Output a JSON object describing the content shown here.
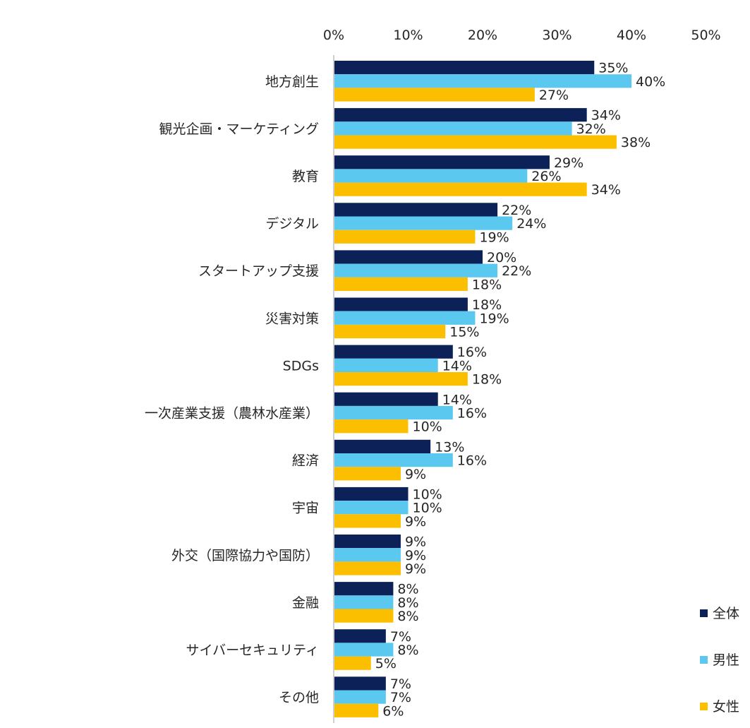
{
  "chart_data": {
    "type": "bar",
    "orientation": "horizontal",
    "xlim": [
      0,
      50
    ],
    "x_ticks": [
      "0%",
      "10%",
      "20%",
      "30%",
      "40%",
      "50%"
    ],
    "tick_values": [
      0,
      10,
      20,
      30,
      40,
      50
    ],
    "grid": false,
    "legend_position": "bottom-right",
    "categories": [
      "地方創生",
      "観光企画・マーケティング",
      "教育",
      "デジタル",
      "スタートアップ支援",
      "災害対策",
      "SDGs",
      "一次産業支援（農林水産業）",
      "経済",
      "宇宙",
      "外交（国際協力や国防）",
      "金融",
      "サイバーセキュリティ",
      "その他"
    ],
    "series": [
      {
        "name": "全体",
        "color": "#0d2159",
        "values": [
          35,
          34,
          29,
          22,
          20,
          18,
          16,
          14,
          13,
          10,
          9,
          8,
          7,
          7
        ],
        "labels": [
          "35%",
          "34%",
          "29%",
          "22%",
          "20%",
          "18%",
          "16%",
          "14%",
          "13%",
          "10%",
          "9%",
          "8%",
          "7%",
          "7%"
        ]
      },
      {
        "name": "男性",
        "color": "#5bc8f0",
        "values": [
          40,
          32,
          26,
          24,
          22,
          19,
          14,
          16,
          16,
          10,
          9,
          8,
          8,
          7
        ],
        "labels": [
          "40%",
          "32%",
          "26%",
          "24%",
          "22%",
          "19%",
          "14%",
          "16%",
          "16%",
          "10%",
          "9%",
          "8%",
          "8%",
          "7%"
        ]
      },
      {
        "name": "女性",
        "color": "#fbbf00",
        "values": [
          27,
          38,
          34,
          19,
          18,
          15,
          18,
          10,
          9,
          9,
          9,
          8,
          5,
          6
        ],
        "labels": [
          "27%",
          "38%",
          "34%",
          "19%",
          "18%",
          "15%",
          "18%",
          "10%",
          "9%",
          "9%",
          "9%",
          "8%",
          "5%",
          "6%"
        ]
      }
    ]
  }
}
